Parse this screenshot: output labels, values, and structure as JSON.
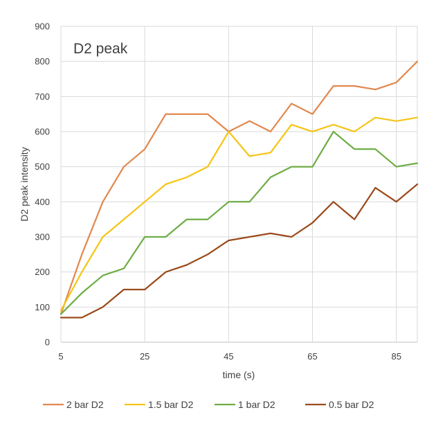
{
  "chart_data": {
    "type": "line",
    "title": "D2 peak",
    "xlabel": "time (s)",
    "ylabel": "D2 peak intensity",
    "xlim": [
      5,
      90
    ],
    "ylim": [
      0,
      900
    ],
    "x_ticks": [
      5,
      25,
      45,
      65,
      85
    ],
    "y_ticks": [
      0,
      100,
      200,
      300,
      400,
      500,
      600,
      700,
      800,
      900
    ],
    "grid": true,
    "legend_position": "bottom",
    "x": [
      5,
      10,
      15,
      20,
      25,
      30,
      35,
      40,
      45,
      50,
      55,
      60,
      65,
      70,
      75,
      80,
      85,
      90
    ],
    "series": [
      {
        "name": "2 bar D2",
        "color": "#E2884F",
        "values": [
          80,
          250,
          400,
          500,
          550,
          650,
          650,
          650,
          600,
          630,
          600,
          680,
          650,
          730,
          730,
          720,
          740,
          800
        ]
      },
      {
        "name": "1.5 bar D2",
        "color": "#F5C518",
        "values": [
          90,
          200,
          300,
          350,
          400,
          450,
          470,
          500,
          600,
          530,
          540,
          620,
          600,
          620,
          600,
          640,
          630,
          640
        ]
      },
      {
        "name": "1 bar D2",
        "color": "#6EAD45",
        "values": [
          80,
          140,
          190,
          210,
          300,
          300,
          350,
          350,
          400,
          400,
          470,
          500,
          500,
          600,
          550,
          550,
          500,
          510
        ]
      },
      {
        "name": "0.5 bar D2",
        "color": "#9B4A1B",
        "values": [
          70,
          70,
          100,
          150,
          150,
          200,
          220,
          250,
          290,
          300,
          310,
          300,
          340,
          400,
          350,
          440,
          400,
          450
        ]
      }
    ]
  }
}
